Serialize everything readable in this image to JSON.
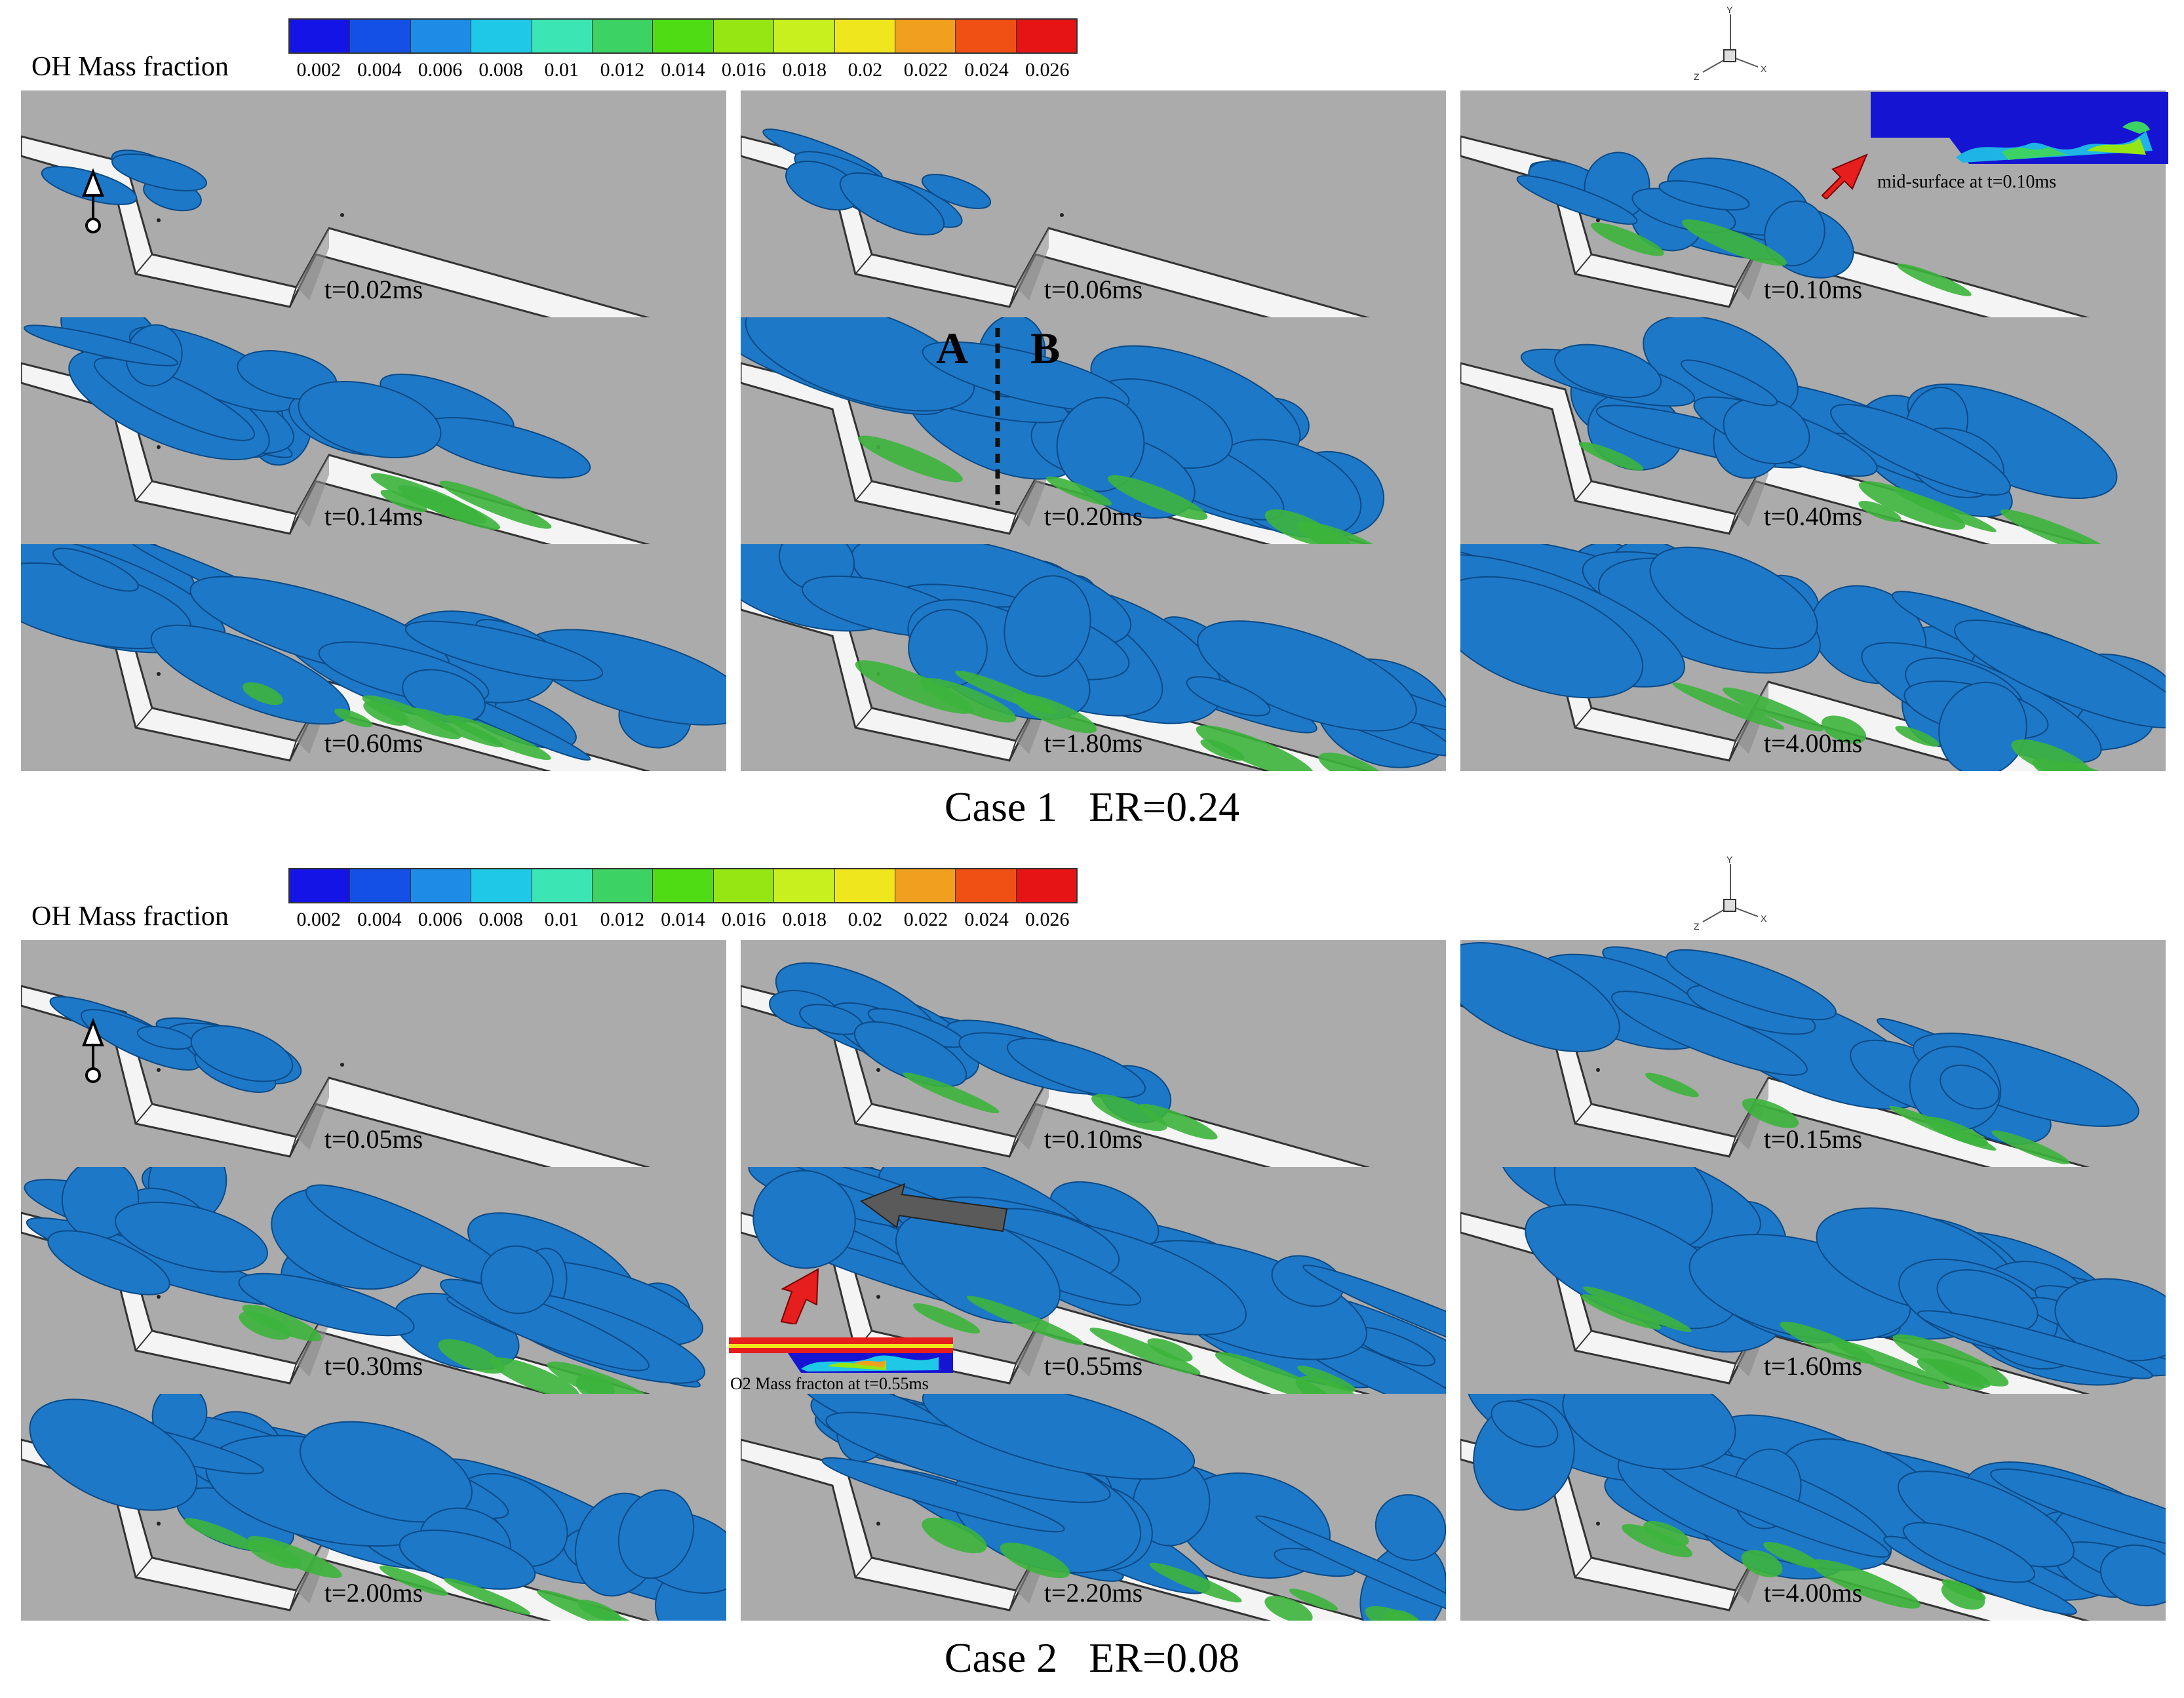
{
  "colorbar": {
    "title": "OH Mass fraction",
    "ticks": [
      "0.002",
      "0.004",
      "0.006",
      "0.008",
      "0.01",
      "0.012",
      "0.014",
      "0.016",
      "0.018",
      "0.02",
      "0.022",
      "0.024",
      "0.026"
    ],
    "colors": [
      "#1414e6",
      "#1450e6",
      "#1e8ce6",
      "#1ec8e6",
      "#3ce6b4",
      "#3cd264",
      "#50dc14",
      "#96e614",
      "#c8f01e",
      "#f0e61e",
      "#f0a01e",
      "#f05014",
      "#e61414"
    ]
  },
  "axis_triad": {
    "x": "X",
    "y": "Y",
    "z": "Z"
  },
  "case1": {
    "title": "Case 1   ER=0.24",
    "times": [
      "t=0.02ms",
      "t=0.06ms",
      "t=0.10ms",
      "t=0.14ms",
      "t=0.20ms",
      "t=0.40ms",
      "t=0.60ms",
      "t=1.80ms",
      "t=4.00ms"
    ],
    "inset_caption": "mid-surface at t=0.10ms",
    "section_labels": [
      "A",
      "B"
    ]
  },
  "case2": {
    "title": "Case 2   ER=0.08",
    "times": [
      "t=0.05ms",
      "t=0.10ms",
      "t=0.15ms",
      "t=0.30ms",
      "t=0.55ms",
      "t=1.60ms",
      "t=2.00ms",
      "t=2.20ms",
      "t=4.00ms"
    ],
    "inset_caption": "O2 Mass fracton at t=0.55ms"
  },
  "colors": {
    "background": "#ababab",
    "plume": "#1e78c8",
    "plume_green": "#3cb43c",
    "arrow_red": "#e61e1e",
    "arrow_gray": "#555555"
  }
}
